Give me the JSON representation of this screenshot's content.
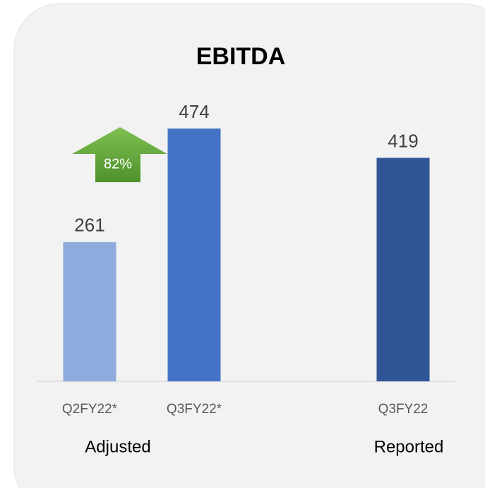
{
  "chart_data": {
    "type": "bar",
    "title": "EBITDA",
    "categories": [
      "Q2FY22*",
      "Q3FY22*",
      null,
      "Q3FY22"
    ],
    "values": [
      261,
      474,
      null,
      419
    ],
    "colors": [
      "#8faadc",
      "#4472c4",
      null,
      "#2f5597"
    ],
    "annotations": {
      "change": "82%",
      "groups": [
        "Adjusted",
        "Reported"
      ]
    }
  }
}
